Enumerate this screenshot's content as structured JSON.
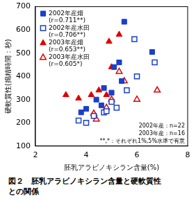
{
  "chart_data": {
    "type": "scatter",
    "title": "図２　胚乳アラビノキシラン含量と硬軟質性との関係",
    "x_label": "胚乳アラビノキシラン含量(%)",
    "y_label": "硬軟質性(搗精時間：秒)",
    "xlim": [
      2,
      8
    ],
    "xticks": [
      2,
      4,
      6,
      8
    ],
    "ylim": [
      100,
      700
    ],
    "yticks": [
      100,
      200,
      300,
      400,
      500,
      600,
      700
    ],
    "grid": false,
    "legend": "top-left",
    "annotations": [
      "2002年産：n=22",
      "2003年産：n=16",
      "**,*：それぞれ1%,5%水準で有意"
    ],
    "series": [
      {
        "name": "2002年産畑",
        "note": "(r=0.711**)",
        "color": "#1a3fcc",
        "marker": "square",
        "x": [
          3.8,
          4.0,
          4.4,
          4.6,
          4.7,
          5.0,
          5.1,
          5.3,
          5.4,
          5.5,
          6.6
        ],
        "values": [
          245,
          260,
          300,
          275,
          350,
          330,
          440,
          460,
          380,
          635,
          505
        ]
      },
      {
        "name": "2002年産水田",
        "note": "(r=0.706**)",
        "color": "#1a3fcc",
        "marker": "square-open",
        "x": [
          3.7,
          4.0,
          4.3,
          4.7,
          4.8,
          5.0,
          5.2,
          5.6,
          5.9,
          6.0,
          6.7
        ],
        "values": [
          210,
          200,
          230,
          245,
          250,
          290,
          265,
          340,
          560,
          400,
          460
        ]
      },
      {
        "name": "2003年産畑",
        "note": "(r=0.653**)",
        "color": "#e00000",
        "marker": "triangle",
        "x": [
          3.2,
          3.7,
          4.2,
          4.5,
          4.8,
          4.9,
          5.0,
          5.3
        ],
        "values": [
          320,
          305,
          320,
          340,
          320,
          550,
          440,
          580
        ]
      },
      {
        "name": "2003年産水田",
        "note": "(r=0.605*)",
        "color": "#e00000",
        "marker": "triangle-open",
        "x": [
          4.3,
          4.4,
          4.8,
          5.0,
          5.3,
          5.5,
          6.0,
          6.8
        ],
        "values": [
          240,
          215,
          265,
          300,
          420,
          380,
          300,
          340
        ]
      }
    ]
  }
}
